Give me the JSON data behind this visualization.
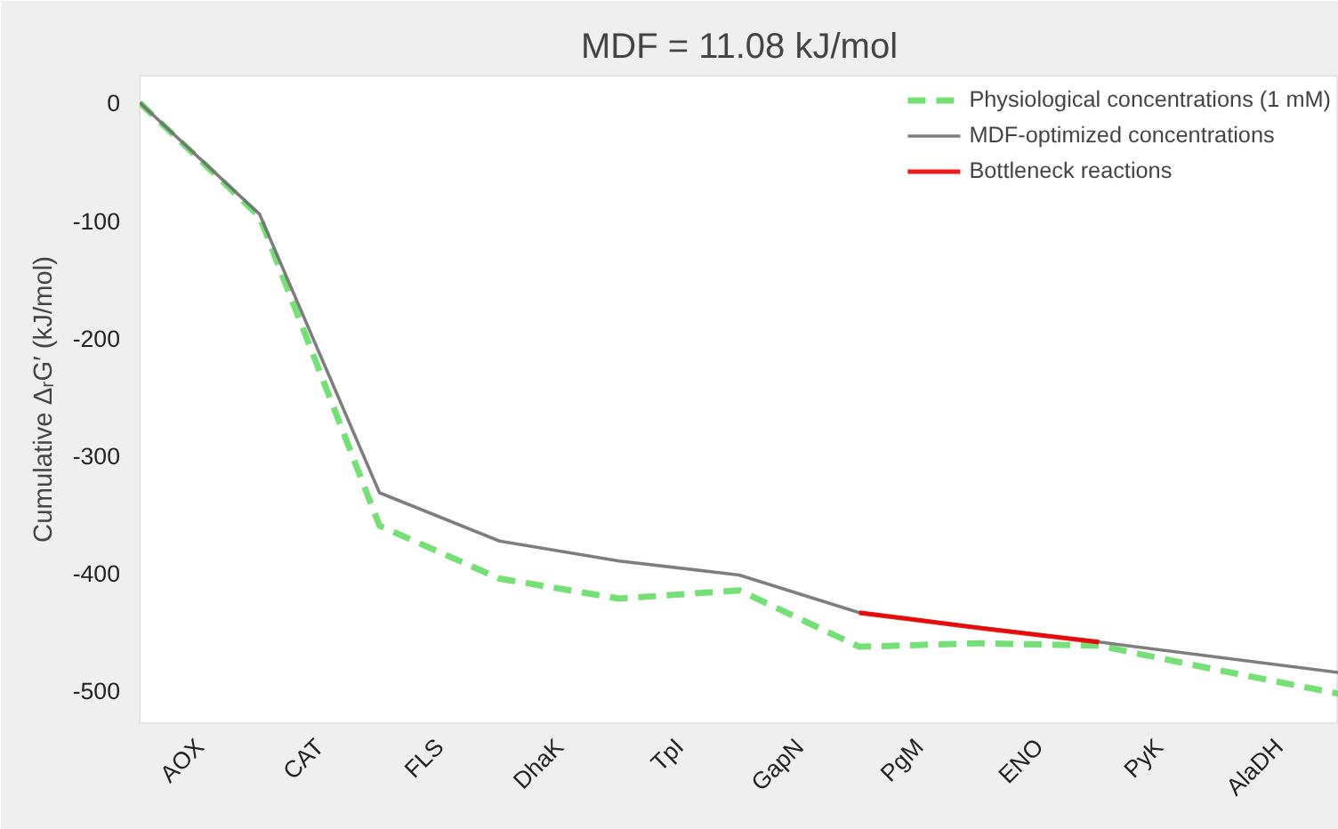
{
  "chart_data": {
    "type": "line",
    "title": "MDF = 11.08 kJ/mol",
    "ylabel": "Cumulative ΔᵣG′ (kJ/mol)",
    "categories": [
      null,
      "AOX",
      null,
      "CAT",
      null,
      "FLS",
      null,
      "DhaK",
      null,
      "TpI",
      null,
      "GapN",
      null,
      "PgM",
      null,
      "ENO",
      null,
      "PyK",
      null,
      "AlaDH",
      null
    ],
    "series": [
      {
        "name": "Physiological concentrations (1 mM)",
        "color": "#66dd66",
        "line_style": "dashed",
        "values": [
          0,
          null,
          -97,
          null,
          -360,
          null,
          -405,
          null,
          -422,
          null,
          -415,
          null,
          -463,
          null,
          -460,
          null,
          -462,
          null,
          -483,
          null,
          -503
        ]
      },
      {
        "name": "MDF-optimized concentrations",
        "color": "#707070",
        "line_style": "solid",
        "values": [
          0,
          null,
          -95,
          null,
          -332,
          null,
          -373,
          null,
          -390,
          null,
          -402,
          null,
          -434,
          null,
          null,
          null,
          -459,
          null,
          -472,
          null,
          -485
        ]
      },
      {
        "name": "Bottleneck reactions",
        "color": "#ee0000",
        "line_style": "solid",
        "values": [
          null,
          null,
          null,
          null,
          null,
          null,
          null,
          null,
          null,
          null,
          null,
          null,
          -434,
          null,
          -447,
          null,
          -459,
          null,
          null,
          null,
          null
        ]
      }
    ],
    "ylim": [
      -528,
      23
    ],
    "yticks": [
      0,
      -100,
      -200,
      -300,
      -400,
      -500
    ],
    "grid": false,
    "legend": "top right",
    "marker": "none"
  }
}
